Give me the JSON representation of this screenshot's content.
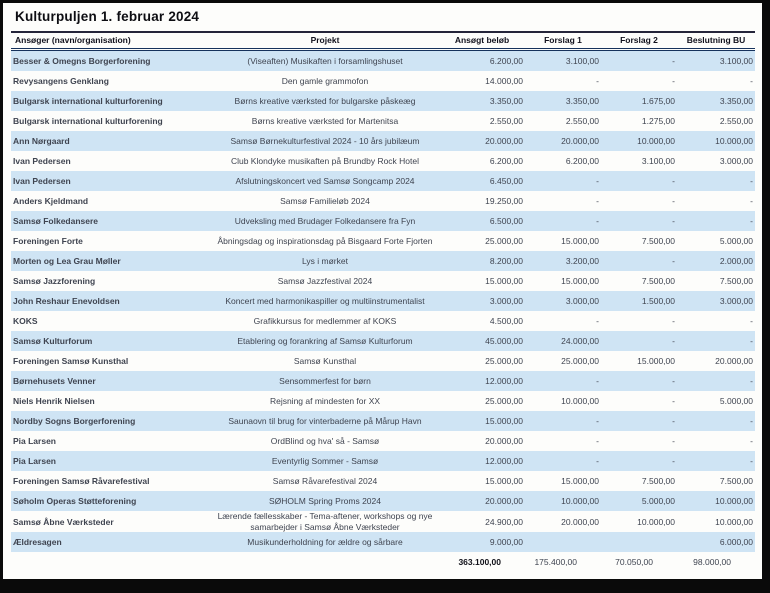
{
  "page": {
    "title": "Kulturpuljen 1. februar 2024"
  },
  "colors": {
    "stripe": "#cfe4f4",
    "header_rule": "#16325c",
    "frame": "#0a0a0a"
  },
  "table": {
    "columns": [
      "Ansøger (navn/organisation)",
      "Projekt",
      "Ansøgt beløb",
      "Forslag 1",
      "Forslag 2",
      "Beslutning BU"
    ],
    "rows": [
      {
        "ansoeger": "Besser & Omegns Borgerforening",
        "projekt": "(Viseaften) Musikaften i forsamlingshuset",
        "ansoegt": "6.200,00",
        "forslag1": "3.100,00",
        "forslag2": "-",
        "beslutning": "3.100,00"
      },
      {
        "ansoeger": "Revysangens Genklang",
        "projekt": "Den gamle grammofon",
        "ansoegt": "14.000,00",
        "forslag1": "-",
        "forslag2": "-",
        "beslutning": "-"
      },
      {
        "ansoeger": "Bulgarsk international kulturforening",
        "projekt": "Børns kreative værksted for bulgarske påskeæg",
        "ansoegt": "3.350,00",
        "forslag1": "3.350,00",
        "forslag2": "1.675,00",
        "beslutning": "3.350,00"
      },
      {
        "ansoeger": "Bulgarsk international kulturforening",
        "projekt": "Børns kreative værksted for Martenitsa",
        "ansoegt": "2.550,00",
        "forslag1": "2.550,00",
        "forslag2": "1.275,00",
        "beslutning": "2.550,00"
      },
      {
        "ansoeger": "Ann Nørgaard",
        "projekt": "Samsø Børnekulturfestival 2024 - 10 års jubilæum",
        "ansoegt": "20.000,00",
        "forslag1": "20.000,00",
        "forslag2": "10.000,00",
        "beslutning": "10.000,00"
      },
      {
        "ansoeger": "Ivan Pedersen",
        "projekt": "Club Klondyke musikaften på Brundby Rock Hotel",
        "ansoegt": "6.200,00",
        "forslag1": "6.200,00",
        "forslag2": "3.100,00",
        "beslutning": "3.000,00"
      },
      {
        "ansoeger": "Ivan Pedersen",
        "projekt": "Afslutningskoncert ved Samsø Songcamp 2024",
        "ansoegt": "6.450,00",
        "forslag1": "-",
        "forslag2": "-",
        "beslutning": "-"
      },
      {
        "ansoeger": "Anders Kjeldmand",
        "projekt": "Samsø Familieløb 2024",
        "ansoegt": "19.250,00",
        "forslag1": "-",
        "forslag2": "-",
        "beslutning": "-"
      },
      {
        "ansoeger": "Samsø Folkedansere",
        "projekt": "Udveksling med Brudager Folkedansere fra Fyn",
        "ansoegt": "6.500,00",
        "forslag1": "-",
        "forslag2": "-",
        "beslutning": "-"
      },
      {
        "ansoeger": "Foreningen Forte",
        "projekt": "Åbningsdag og inspirationsdag på Bisgaard Forte Fjorten",
        "ansoegt": "25.000,00",
        "forslag1": "15.000,00",
        "forslag2": "7.500,00",
        "beslutning": "5.000,00"
      },
      {
        "ansoeger": "Morten og Lea Grau Møller",
        "projekt": "Lys i mørket",
        "ansoegt": "8.200,00",
        "forslag1": "3.200,00",
        "forslag2": "-",
        "beslutning": "2.000,00"
      },
      {
        "ansoeger": "Samsø Jazzforening",
        "projekt": "Samsø Jazzfestival 2024",
        "ansoegt": "15.000,00",
        "forslag1": "15.000,00",
        "forslag2": "7.500,00",
        "beslutning": "7.500,00"
      },
      {
        "ansoeger": "John Reshaur Enevoldsen",
        "projekt": "Koncert med harmonikaspiller og multiinstrumentalist",
        "ansoegt": "3.000,00",
        "forslag1": "3.000,00",
        "forslag2": "1.500,00",
        "beslutning": "3.000,00"
      },
      {
        "ansoeger": "KOKS",
        "projekt": "Grafikkursus for medlemmer af KOKS",
        "ansoegt": "4.500,00",
        "forslag1": "-",
        "forslag2": "-",
        "beslutning": "-"
      },
      {
        "ansoeger": "Samsø Kulturforum",
        "projekt": "Etablering og forankring af Samsø Kulturforum",
        "ansoegt": "45.000,00",
        "forslag1": "24.000,00",
        "forslag2": "-",
        "beslutning": "-"
      },
      {
        "ansoeger": "Foreningen Samsø Kunsthal",
        "projekt": "Samsø Kunsthal",
        "ansoegt": "25.000,00",
        "forslag1": "25.000,00",
        "forslag2": "15.000,00",
        "beslutning": "20.000,00"
      },
      {
        "ansoeger": "Børnehusets Venner",
        "projekt": "Sensommerfest for børn",
        "ansoegt": "12.000,00",
        "forslag1": "-",
        "forslag2": "-",
        "beslutning": "-"
      },
      {
        "ansoeger": "Niels Henrik Nielsen",
        "projekt": "Rejsning af mindesten for XX",
        "ansoegt": "25.000,00",
        "forslag1": "10.000,00",
        "forslag2": "-",
        "beslutning": "5.000,00"
      },
      {
        "ansoeger": "Nordby Sogns Borgerforening",
        "projekt": "Saunaovn til brug for vinterbaderne på Mårup Havn",
        "ansoegt": "15.000,00",
        "forslag1": "-",
        "forslag2": "-",
        "beslutning": "-"
      },
      {
        "ansoeger": "Pia Larsen",
        "projekt": "OrdBlind og hva' så - Samsø",
        "ansoegt": "20.000,00",
        "forslag1": "-",
        "forslag2": "-",
        "beslutning": "-"
      },
      {
        "ansoeger": "Pia Larsen",
        "projekt": "Eventyrlig Sommer - Samsø",
        "ansoegt": "12.000,00",
        "forslag1": "-",
        "forslag2": "-",
        "beslutning": "-"
      },
      {
        "ansoeger": "Foreningen Samsø Råvarefestival",
        "projekt": "Samsø Råvarefestival 2024",
        "ansoegt": "15.000,00",
        "forslag1": "15.000,00",
        "forslag2": "7.500,00",
        "beslutning": "7.500,00"
      },
      {
        "ansoeger": "Søholm Operas Støtteforening",
        "projekt": "SØHOLM Spring Proms 2024",
        "ansoegt": "20.000,00",
        "forslag1": "10.000,00",
        "forslag2": "5.000,00",
        "beslutning": "10.000,00"
      },
      {
        "ansoeger": "Samsø Åbne Værksteder",
        "projekt": "Lærende fællesskaber - Tema-aftener, workshops og nye samarbejder i Samsø Åbne Værksteder",
        "ansoegt": "24.900,00",
        "forslag1": "20.000,00",
        "forslag2": "10.000,00",
        "beslutning": "10.000,00"
      },
      {
        "ansoeger": "Ældresagen",
        "projekt": "Musikunderholdning for ældre og sårbare",
        "ansoegt": "9.000,00",
        "forslag1": "",
        "forslag2": "",
        "beslutning": "6.000,00"
      }
    ],
    "total": {
      "ansoegt": "363.100,00",
      "forslag1": "175.400,00",
      "forslag2": "70.050,00",
      "beslutning": "98.000,00"
    }
  }
}
